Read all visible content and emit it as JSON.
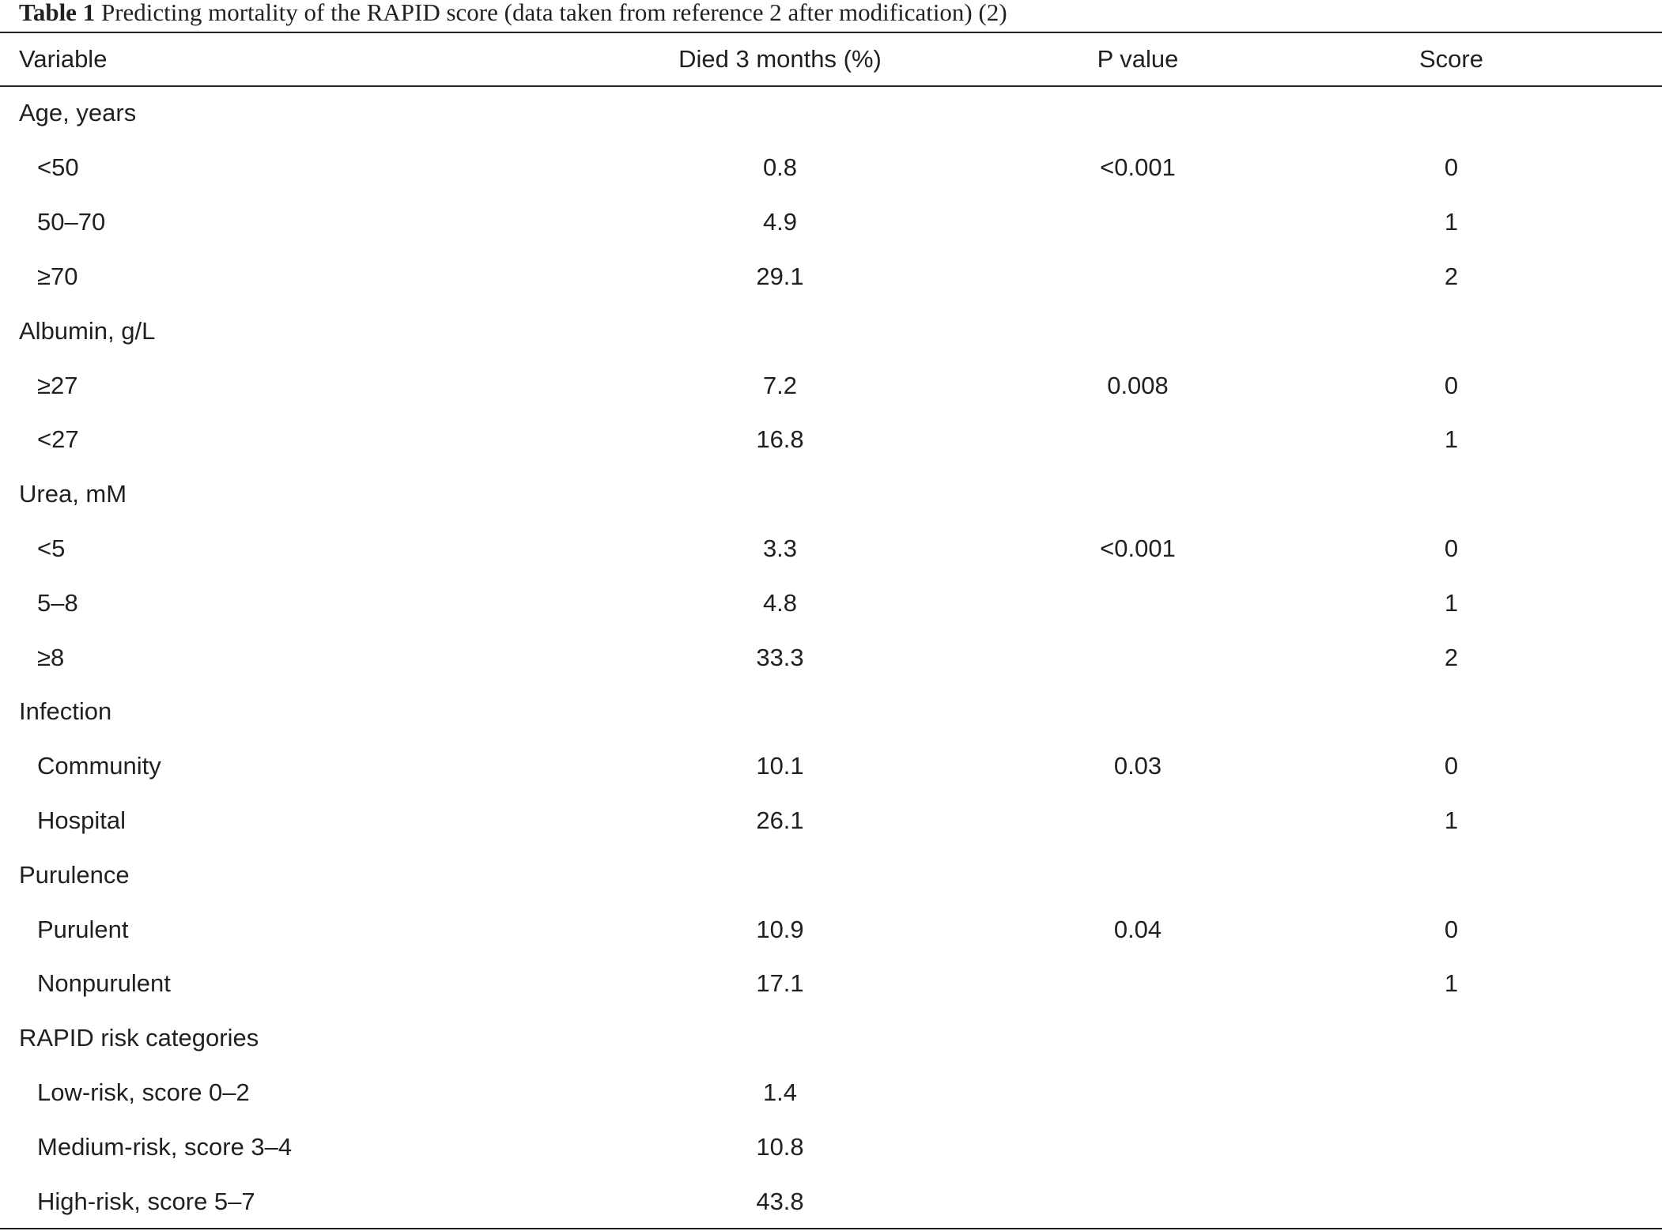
{
  "caption": {
    "label": "Table 1",
    "text": "Predicting mortality of the RAPID score (data taken from reference 2 after modification) (2)"
  },
  "table": {
    "headers": {
      "variable": "Variable",
      "died": "Died 3 months (%)",
      "pvalue": "P value",
      "score": "Score"
    },
    "rows": [
      {
        "variable": "Age, years",
        "died": "",
        "pvalue": "",
        "score": "",
        "type": "group"
      },
      {
        "variable": "<50",
        "died": "0.8",
        "pvalue": "<0.001",
        "score": "0",
        "type": "sub"
      },
      {
        "variable": "50–70",
        "died": "4.9",
        "pvalue": "",
        "score": "1",
        "type": "sub"
      },
      {
        "variable": "≥70",
        "died": "29.1",
        "pvalue": "",
        "score": "2",
        "type": "sub"
      },
      {
        "variable": "Albumin, g/L",
        "died": "",
        "pvalue": "",
        "score": "",
        "type": "group"
      },
      {
        "variable": "≥27",
        "died": "7.2",
        "pvalue": "0.008",
        "score": "0",
        "type": "sub"
      },
      {
        "variable": "<27",
        "died": "16.8",
        "pvalue": "",
        "score": "1",
        "type": "sub"
      },
      {
        "variable": "Urea, mM",
        "died": "",
        "pvalue": "",
        "score": "",
        "type": "group"
      },
      {
        "variable": "<5",
        "died": "3.3",
        "pvalue": "<0.001",
        "score": "0",
        "type": "sub"
      },
      {
        "variable": "5–8",
        "died": "4.8",
        "pvalue": "",
        "score": "1",
        "type": "sub"
      },
      {
        "variable": "≥8",
        "died": "33.3",
        "pvalue": "",
        "score": "2",
        "type": "sub"
      },
      {
        "variable": "Infection",
        "died": "",
        "pvalue": "",
        "score": "",
        "type": "group"
      },
      {
        "variable": "Community",
        "died": "10.1",
        "pvalue": "0.03",
        "score": "0",
        "type": "sub"
      },
      {
        "variable": "Hospital",
        "died": "26.1",
        "pvalue": "",
        "score": "1",
        "type": "sub"
      },
      {
        "variable": "Purulence",
        "died": "",
        "pvalue": "",
        "score": "",
        "type": "group"
      },
      {
        "variable": "Purulent",
        "died": "10.9",
        "pvalue": "0.04",
        "score": "0",
        "type": "sub"
      },
      {
        "variable": "Nonpurulent",
        "died": "17.1",
        "pvalue": "",
        "score": "1",
        "type": "sub"
      },
      {
        "variable": "RAPID risk categories",
        "died": "",
        "pvalue": "",
        "score": "",
        "type": "group"
      },
      {
        "variable": "Low-risk, score 0–2",
        "died": "1.4",
        "pvalue": "",
        "score": "",
        "type": "sub"
      },
      {
        "variable": "Medium-risk, score 3–4",
        "died": "10.8",
        "pvalue": "",
        "score": "",
        "type": "sub"
      },
      {
        "variable": "High-risk, score 5–7",
        "died": "43.8",
        "pvalue": "",
        "score": "",
        "type": "sub"
      }
    ]
  }
}
